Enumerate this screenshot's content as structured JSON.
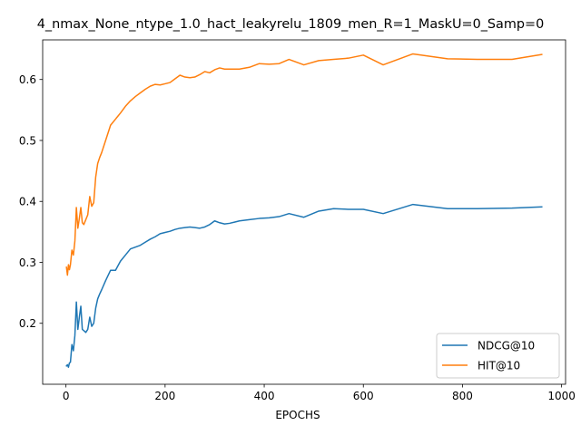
{
  "chart_data": {
    "type": "line",
    "title": "4_nmax_None_ntype_1.0_hact_leakyrelu_1809_men_R=1_MaskU=0_Samp=0",
    "xlabel": "EPOCHS",
    "ylabel": "",
    "xlim": [
      -47,
      1008
    ],
    "ylim": [
      0.1,
      0.665
    ],
    "xticks": [
      0,
      200,
      400,
      600,
      800,
      1000
    ],
    "yticks": [
      0.2,
      0.3,
      0.4,
      0.5,
      0.6
    ],
    "xtick_labels": [
      "0",
      "200",
      "400",
      "600",
      "800",
      "1000"
    ],
    "ytick_labels": [
      "0.2",
      "0.3",
      "0.4",
      "0.5",
      "0.6"
    ],
    "grid": false,
    "legend_position": "lower-right",
    "series": [
      {
        "name": "NDCG@10",
        "color": "#1f77b4",
        "x": [
          1,
          3,
          5,
          7,
          9,
          12,
          15,
          18,
          21,
          24,
          27,
          30,
          33,
          36,
          40,
          44,
          48,
          52,
          56,
          60,
          64,
          68,
          72,
          80,
          90,
          100,
          110,
          120,
          130,
          140,
          150,
          160,
          170,
          180,
          190,
          200,
          210,
          220,
          230,
          240,
          250,
          260,
          270,
          280,
          290,
          300,
          310,
          320,
          330,
          340,
          350,
          370,
          390,
          410,
          430,
          450,
          480,
          510,
          540,
          570,
          600,
          640,
          700,
          770,
          830,
          900,
          960
        ],
        "y": [
          0.13,
          0.132,
          0.128,
          0.135,
          0.136,
          0.165,
          0.155,
          0.18,
          0.235,
          0.19,
          0.21,
          0.228,
          0.19,
          0.188,
          0.185,
          0.19,
          0.21,
          0.195,
          0.2,
          0.225,
          0.24,
          0.248,
          0.255,
          0.27,
          0.287,
          0.287,
          0.302,
          0.312,
          0.322,
          0.325,
          0.328,
          0.333,
          0.338,
          0.342,
          0.347,
          0.349,
          0.351,
          0.354,
          0.356,
          0.357,
          0.358,
          0.357,
          0.356,
          0.358,
          0.362,
          0.368,
          0.365,
          0.363,
          0.364,
          0.366,
          0.368,
          0.37,
          0.372,
          0.373,
          0.375,
          0.38,
          0.374,
          0.384,
          0.388,
          0.387,
          0.387,
          0.38,
          0.395,
          0.388,
          0.388,
          0.389,
          0.391
        ]
      },
      {
        "name": "HIT@10",
        "color": "#ff7f0e",
        "x": [
          1,
          3,
          5,
          7,
          9,
          12,
          15,
          18,
          21,
          24,
          27,
          30,
          33,
          36,
          40,
          44,
          48,
          52,
          56,
          60,
          64,
          68,
          72,
          80,
          90,
          100,
          110,
          120,
          130,
          140,
          150,
          160,
          170,
          180,
          190,
          200,
          210,
          220,
          230,
          240,
          250,
          260,
          270,
          280,
          290,
          300,
          310,
          320,
          330,
          340,
          350,
          370,
          390,
          410,
          430,
          450,
          480,
          510,
          540,
          570,
          600,
          640,
          700,
          770,
          830,
          900,
          960
        ],
        "y": [
          0.292,
          0.279,
          0.296,
          0.288,
          0.296,
          0.32,
          0.312,
          0.335,
          0.39,
          0.356,
          0.372,
          0.39,
          0.365,
          0.362,
          0.37,
          0.378,
          0.408,
          0.392,
          0.398,
          0.44,
          0.462,
          0.472,
          0.48,
          0.5,
          0.525,
          0.535,
          0.545,
          0.556,
          0.565,
          0.572,
          0.578,
          0.584,
          0.589,
          0.592,
          0.591,
          0.593,
          0.595,
          0.601,
          0.607,
          0.604,
          0.603,
          0.604,
          0.608,
          0.613,
          0.611,
          0.616,
          0.619,
          0.617,
          0.617,
          0.617,
          0.617,
          0.62,
          0.626,
          0.625,
          0.626,
          0.633,
          0.624,
          0.631,
          0.633,
          0.635,
          0.64,
          0.624,
          0.642,
          0.634,
          0.633,
          0.633,
          0.641
        ]
      }
    ]
  }
}
